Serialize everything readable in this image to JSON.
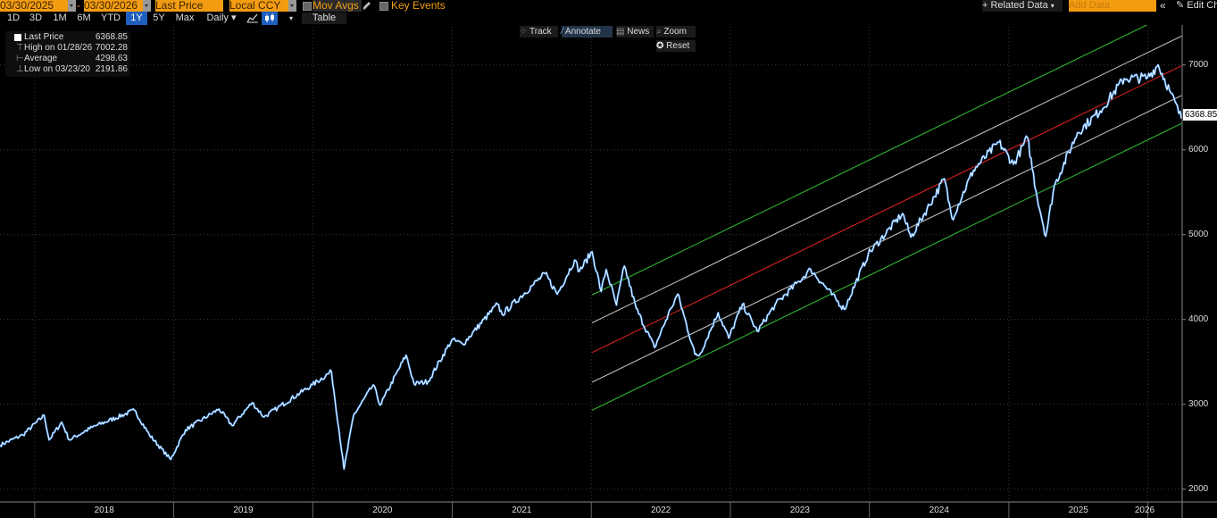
{
  "toolbar": {
    "start_date": "03/30/2025",
    "dash": "-",
    "end_date": "03/30/2026",
    "field": "Last Price",
    "currency": "Local CCY",
    "mov_avgs": "Mov Avgs",
    "key_events": "Key Events",
    "related_data": "+ Related Data",
    "add_data_placeholder": "Add Data",
    "edit_chart": "Edit Ch"
  },
  "ranges": [
    "1D",
    "3D",
    "1M",
    "6M",
    "YTD",
    "1Y",
    "5Y",
    "Max"
  ],
  "active_range": "1Y",
  "frequency": "Daily",
  "table_label": "Table",
  "chart_tools": {
    "track": "Track",
    "annotate": "Annotate",
    "news": "News",
    "zoom": "Zoom",
    "reset": "Reset"
  },
  "legend": {
    "last_price_label": "Last Price",
    "last_price_value": "6368.85",
    "high_label": "High on 01/28/26",
    "high_value": "7002.28",
    "average_label": "Average",
    "average_value": "4298.63",
    "low_label": "Low on 03/23/20",
    "low_value": "2191.86"
  },
  "colors": {
    "price_line": "#ffffff",
    "price_accent": "#3b8fe8",
    "regression_center": "#d42020",
    "inner_band": "#bdbdbd",
    "outer_band": "#2fb32f",
    "toolbar_orange": "#f39c12",
    "active_range": "#1f5fbf"
  },
  "chart_data": {
    "type": "line",
    "ylim": [
      1850,
      7450
    ],
    "yticks": [
      2000,
      3000,
      4000,
      5000,
      6000,
      7000
    ],
    "xticks": [
      "2018",
      "2019",
      "2020",
      "2021",
      "2022",
      "2023",
      "2024",
      "2025",
      "2026"
    ],
    "last_value_label": "6368.85",
    "grid": true,
    "series": [
      {
        "x": [
          "2017-10-02",
          "2017-12-01",
          "2018-01-26",
          "2018-02-08",
          "2018-03-13",
          "2018-04-02",
          "2018-06-01",
          "2018-09-20",
          "2018-10-29",
          "2018-12-24",
          "2019-02-01",
          "2019-04-30",
          "2019-06-03",
          "2019-07-26",
          "2019-08-26",
          "2019-10-01",
          "2019-12-31",
          "2020-02-19",
          "2020-03-23",
          "2020-04-17",
          "2020-06-08",
          "2020-06-26",
          "2020-09-02",
          "2020-09-23",
          "2020-10-30",
          "2020-12-31",
          "2021-01-29",
          "2021-04-30",
          "2021-05-12",
          "2021-07-30",
          "2021-09-02",
          "2021-10-04",
          "2021-11-18",
          "2021-12-01",
          "2022-01-03",
          "2022-01-27",
          "2022-02-09",
          "2022-03-08",
          "2022-03-29",
          "2022-04-29",
          "2022-06-16",
          "2022-07-29",
          "2022-08-16",
          "2022-09-30",
          "2022-10-12",
          "2022-11-30",
          "2022-12-28",
          "2023-02-02",
          "2023-03-13",
          "2023-04-28",
          "2023-06-30",
          "2023-07-31",
          "2023-10-27",
          "2023-12-29",
          "2024-03-28",
          "2024-04-19",
          "2024-07-16",
          "2024-08-05",
          "2024-09-30",
          "2024-12-06",
          "2025-01-13",
          "2025-02-19",
          "2025-03-13",
          "2025-04-08",
          "2025-04-30",
          "2025-06-30",
          "2025-08-29",
          "2025-10-31",
          "2025-12-31",
          "2026-01-28",
          "2026-02-27",
          "2026-03-30"
        ],
        "values": [
          2520,
          2640,
          2870,
          2580,
          2790,
          2580,
          2730,
          2930,
          2640,
          2350,
          2700,
          2945,
          2750,
          3020,
          2850,
          2960,
          3230,
          3386,
          2237,
          2870,
          3230,
          2990,
          3580,
          3240,
          3270,
          3760,
          3710,
          4180,
          4060,
          4400,
          4540,
          4300,
          4700,
          4570,
          4800,
          4330,
          4590,
          4170,
          4630,
          4130,
          3670,
          4130,
          4300,
          3590,
          3580,
          4080,
          3780,
          4180,
          3860,
          4170,
          4450,
          4590,
          4120,
          4770,
          5250,
          4970,
          5660,
          5190,
          5760,
          6090,
          5830,
          6144,
          5520,
          4982,
          5570,
          6200,
          6460,
          6840,
          6850,
          7002,
          6700,
          6368.85
        ]
      }
    ],
    "regression_channel": {
      "start": "2022-01-03",
      "end": "2026-03-30",
      "center_start": 3610,
      "center_end": 6990,
      "inner_offset": 350,
      "outer_offset": 680
    }
  }
}
